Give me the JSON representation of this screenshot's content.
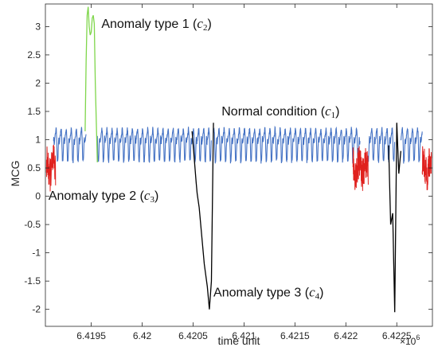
{
  "chart_data": {
    "type": "line",
    "xlabel": "time unit",
    "ylabel": "MCG",
    "x_exponent_label": "×10",
    "x_exponent_power": "6",
    "xlim": [
      6.41905,
      6.42285
    ],
    "ylim": [
      -2.3,
      3.4
    ],
    "x_ticks": [
      6.4195,
      6.42,
      6.4205,
      6.421,
      6.4215,
      6.422,
      6.4225
    ],
    "x_tick_labels": [
      "6.4195",
      "6.42",
      "6.4205",
      "6.421",
      "6.4215",
      "6.422",
      "6.4225"
    ],
    "y_ticks": [
      -2,
      -1.5,
      -1,
      -0.5,
      0,
      0.5,
      1,
      1.5,
      2,
      2.5,
      3
    ],
    "y_tick_labels": [
      "-2",
      "-1.5",
      "-1",
      "-0.5",
      "0",
      "0.5",
      "1",
      "1.5",
      "2",
      "2.5",
      "3"
    ],
    "grid": false,
    "series": [
      {
        "class": "normal",
        "color": "#4472c4",
        "segments": [
          {
            "x_start": 6.41913,
            "x_end": 6.41945
          },
          {
            "x_start": 6.41956,
            "x_end": 6.42068
          },
          {
            "x_start": 6.4207,
            "x_end": 6.42214
          },
          {
            "x_start": 6.42222,
            "x_end": 6.42248
          },
          {
            "x_start": 6.42254,
            "x_end": 6.42275
          }
        ],
        "baseline": 0.85,
        "amplitude": 0.3,
        "period": 5e-05
      },
      {
        "class": "anomaly type 1",
        "color": "#7fd64b",
        "points": [
          [
            6.41944,
            1.15
          ],
          [
            6.41945,
            2.4
          ],
          [
            6.41946,
            3.2
          ],
          [
            6.41947,
            3.35
          ],
          [
            6.41948,
            3.0
          ],
          [
            6.41949,
            2.85
          ],
          [
            6.4195,
            2.9
          ],
          [
            6.41951,
            3.15
          ],
          [
            6.41952,
            3.2
          ],
          [
            6.41953,
            3.05
          ],
          [
            6.41954,
            2.0
          ],
          [
            6.41956,
            0.6
          ]
        ]
      },
      {
        "class": "anomaly type 2",
        "color": "#e0211e",
        "segments": [
          {
            "x_start": 6.41906,
            "x_end": 6.41915
          },
          {
            "x_start": 6.42207,
            "x_end": 6.42222
          },
          {
            "x_start": 6.42275,
            "x_end": 6.42284
          }
        ],
        "center": 0.5,
        "spread": 0.6
      },
      {
        "class": "anomaly type 3",
        "color": "#000000",
        "segments": [
          {
            "points": [
              [
                6.42049,
                1.15
              ],
              [
                6.42051,
                0.7
              ],
              [
                6.42053,
                0.25
              ],
              [
                6.42054,
                0.05
              ],
              [
                6.42056,
                -0.2
              ],
              [
                6.42058,
                -0.6
              ],
              [
                6.42061,
                -1.2
              ],
              [
                6.42064,
                -1.6
              ],
              [
                6.42066,
                -2.0
              ],
              [
                6.42068,
                -1.5
              ],
              [
                6.4207,
                1.3
              ]
            ]
          },
          {
            "points": [
              [
                6.42242,
                0.9
              ],
              [
                6.42244,
                -0.5
              ],
              [
                6.42246,
                -0.3
              ],
              [
                6.42248,
                -2.05
              ],
              [
                6.4225,
                1.3
              ],
              [
                6.42252,
                0.4
              ],
              [
                6.42254,
                0.8
              ]
            ]
          }
        ]
      }
    ],
    "annotations": [
      {
        "text": "Anomaly type 1 (",
        "var": "c",
        "sub": "2",
        "close": ")",
        "x": 6.4196,
        "y": 2.98
      },
      {
        "text": "Anomaly type 2 (",
        "var": "c",
        "sub": "3",
        "close": ")",
        "x": 6.41908,
        "y": -0.06
      },
      {
        "text": "Normal condition (",
        "var": "c",
        "sub": "1",
        "close": ")",
        "x": 6.42078,
        "y": 1.43
      },
      {
        "text": "Anomaly type 3 (",
        "var": "c",
        "sub": "4",
        "close": ")",
        "x": 6.4207,
        "y": -1.77
      }
    ]
  }
}
